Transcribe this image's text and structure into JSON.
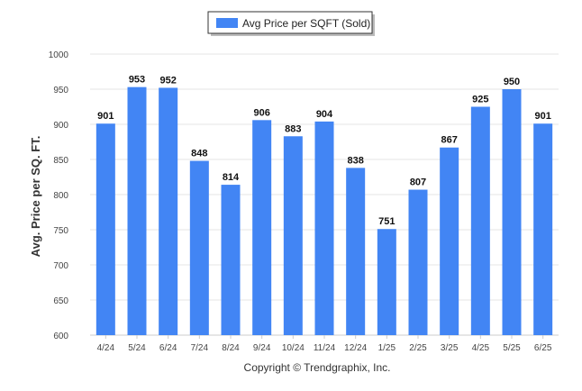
{
  "chart_data": {
    "type": "bar",
    "categories": [
      "4/24",
      "5/24",
      "6/24",
      "7/24",
      "8/24",
      "9/24",
      "10/24",
      "11/24",
      "12/24",
      "1/25",
      "2/25",
      "3/25",
      "4/25",
      "5/25",
      "6/25"
    ],
    "series": [
      {
        "name": "Avg Price per SQFT (Sold)",
        "values": [
          901,
          953,
          952,
          848,
          814,
          906,
          883,
          904,
          838,
          751,
          807,
          867,
          925,
          950,
          901
        ],
        "color": "#4285f4"
      }
    ],
    "ylabel": "Avg. Price per SQ. FT.",
    "xlabel": "",
    "ylim": [
      600,
      1000
    ],
    "yticks": [
      600,
      650,
      700,
      750,
      800,
      850,
      900,
      950,
      1000
    ],
    "grid": true,
    "legend": "top-center",
    "data_labels": true
  },
  "credit": "Copyright © Trendgraphix, Inc."
}
